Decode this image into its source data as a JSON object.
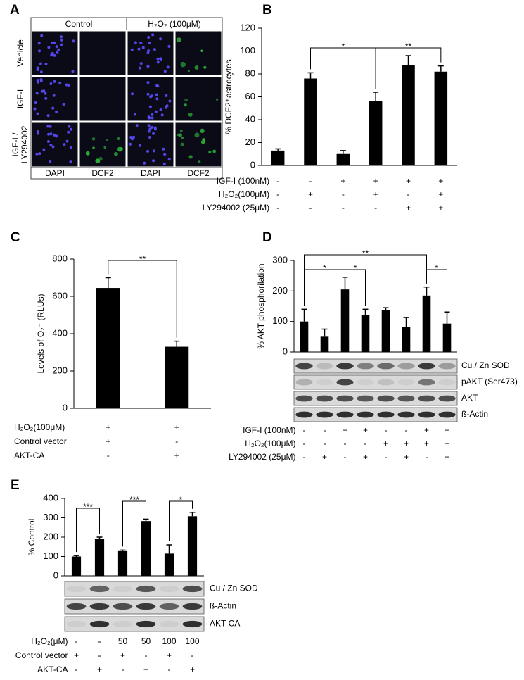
{
  "image_panel": {
    "label": "A",
    "columns": [
      "Control",
      "H₂O₂ (100μM)"
    ],
    "rows": [
      [
        "Vehicle"
      ],
      [
        "IGF-I"
      ],
      [
        "IGF-I /",
        "LY294002"
      ]
    ],
    "stains": [
      "DAPI",
      "DCF2",
      "DAPI",
      "DCF2"
    ]
  },
  "chart_data": [
    {
      "type": "bar",
      "label": "B",
      "ylabel": "% DCF2⁺astrocytes",
      "color": "#000000",
      "values": [
        13,
        76,
        10,
        56,
        88,
        82
      ],
      "errors": [
        1.5,
        5,
        3,
        8,
        8,
        5
      ],
      "ylim": [
        0,
        120
      ],
      "yticks": [
        0,
        20,
        40,
        60,
        80,
        100,
        120
      ],
      "annotations": [
        "*",
        "**"
      ],
      "conditions": [
        {
          "label": "IGF-I (100nM)",
          "values": [
            "-",
            "-",
            "+",
            "+",
            "+",
            "+"
          ]
        },
        {
          "label": "H₂O₂(100μM)",
          "values": [
            "-",
            "+",
            "-",
            "+",
            "-",
            "+"
          ]
        },
        {
          "label": "LY294002 (25μM)",
          "values": [
            "-",
            "-",
            "-",
            "-",
            "+",
            "+"
          ]
        }
      ]
    },
    {
      "type": "bar",
      "label": "C",
      "ylabel": "Levels of O₂⁻ (RLUs)",
      "color": "#000000",
      "values": [
        645,
        330
      ],
      "errors": [
        55,
        30
      ],
      "ylim": [
        0,
        800
      ],
      "yticks": [
        0,
        200,
        400,
        600,
        800
      ],
      "annotations": [
        "**"
      ],
      "conditions": [
        {
          "label": "H₂O₂(100μM)",
          "values": [
            "+",
            "+"
          ]
        },
        {
          "label": "Control vector",
          "values": [
            "+",
            "-"
          ]
        },
        {
          "label": "AKT-CA",
          "values": [
            "-",
            "+"
          ]
        }
      ]
    },
    {
      "type": "bar",
      "label": "D",
      "ylabel": "% AKT phosphorilation",
      "color": "#000000",
      "values": [
        100,
        50,
        205,
        122,
        137,
        83,
        185,
        93
      ],
      "errors": [
        40,
        25,
        40,
        18,
        8,
        30,
        28,
        38
      ],
      "ylim": [
        0,
        300
      ],
      "yticks": [
        0,
        100,
        200,
        300
      ],
      "annotations": [
        "*",
        "*",
        "**",
        "*"
      ],
      "blots": [
        "Cu / Zn SOD",
        "pAKT (Ser473)",
        "AKT",
        "ß-Actin"
      ],
      "conditions": [
        {
          "label": "IGF-I (100nM)",
          "values": [
            "-",
            "-",
            "+",
            "+",
            "-",
            "-",
            "+",
            "+"
          ]
        },
        {
          "label": "H₂O₂(100μM)",
          "values": [
            "-",
            "-",
            "-",
            "-",
            "+",
            "+",
            "+",
            "+"
          ]
        },
        {
          "label": "LY294002 (25μM)",
          "values": [
            "-",
            "+",
            "-",
            "+",
            "-",
            "+",
            "-",
            "+"
          ]
        }
      ]
    },
    {
      "type": "bar",
      "label": "E",
      "ylabel": "% Control",
      "color": "#000000",
      "values": [
        100,
        192,
        128,
        283,
        115,
        308
      ],
      "errors": [
        5,
        8,
        5,
        10,
        45,
        20
      ],
      "ylim": [
        0,
        400
      ],
      "yticks": [
        0,
        100,
        200,
        300,
        400
      ],
      "annotations": [
        "***",
        "***",
        "*"
      ],
      "blots": [
        "Cu / Zn SOD",
        "ß-Actin",
        "AKT-CA"
      ],
      "conditions": [
        {
          "label": "H₂O₂(μM)",
          "values": [
            "-",
            "-",
            "50",
            "50",
            "100",
            "100"
          ]
        },
        {
          "label": "Control vector",
          "values": [
            "+",
            "-",
            "+",
            "-",
            "+",
            "-"
          ]
        },
        {
          "label": "AKT-CA",
          "values": [
            "-",
            "+",
            "-",
            "+",
            "-",
            "+"
          ]
        }
      ]
    }
  ]
}
